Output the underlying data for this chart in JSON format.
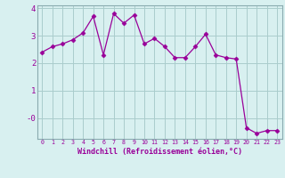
{
  "x": [
    0,
    1,
    2,
    3,
    4,
    5,
    6,
    7,
    8,
    9,
    10,
    11,
    12,
    13,
    14,
    15,
    16,
    17,
    18,
    19,
    20,
    21,
    22,
    23
  ],
  "y": [
    2.4,
    2.6,
    2.7,
    2.85,
    3.1,
    3.7,
    2.3,
    3.8,
    3.45,
    3.75,
    2.7,
    2.9,
    2.6,
    2.2,
    2.2,
    2.6,
    3.05,
    2.3,
    2.2,
    2.15,
    -0.35,
    -0.55,
    -0.45,
    -0.45
  ],
  "line_color": "#990099",
  "marker": "D",
  "marker_size": 2.5,
  "bg_color": "#d8f0f0",
  "grid_color": "#aacccc",
  "xlabel": "Windchill (Refroidissement éolien,°C)",
  "xlabel_color": "#990099",
  "tick_color": "#990099",
  "spine_color": "#8aabb0",
  "ylim": [
    -0.75,
    4.1
  ],
  "xlim": [
    -0.5,
    23.5
  ],
  "xticks": [
    0,
    1,
    2,
    3,
    4,
    5,
    6,
    7,
    8,
    9,
    10,
    11,
    12,
    13,
    14,
    15,
    16,
    17,
    18,
    19,
    20,
    21,
    22,
    23
  ],
  "yticks": [
    0,
    1,
    2,
    3,
    4
  ],
  "ytick_labels": [
    "-0",
    "1",
    "2",
    "3",
    "4"
  ]
}
